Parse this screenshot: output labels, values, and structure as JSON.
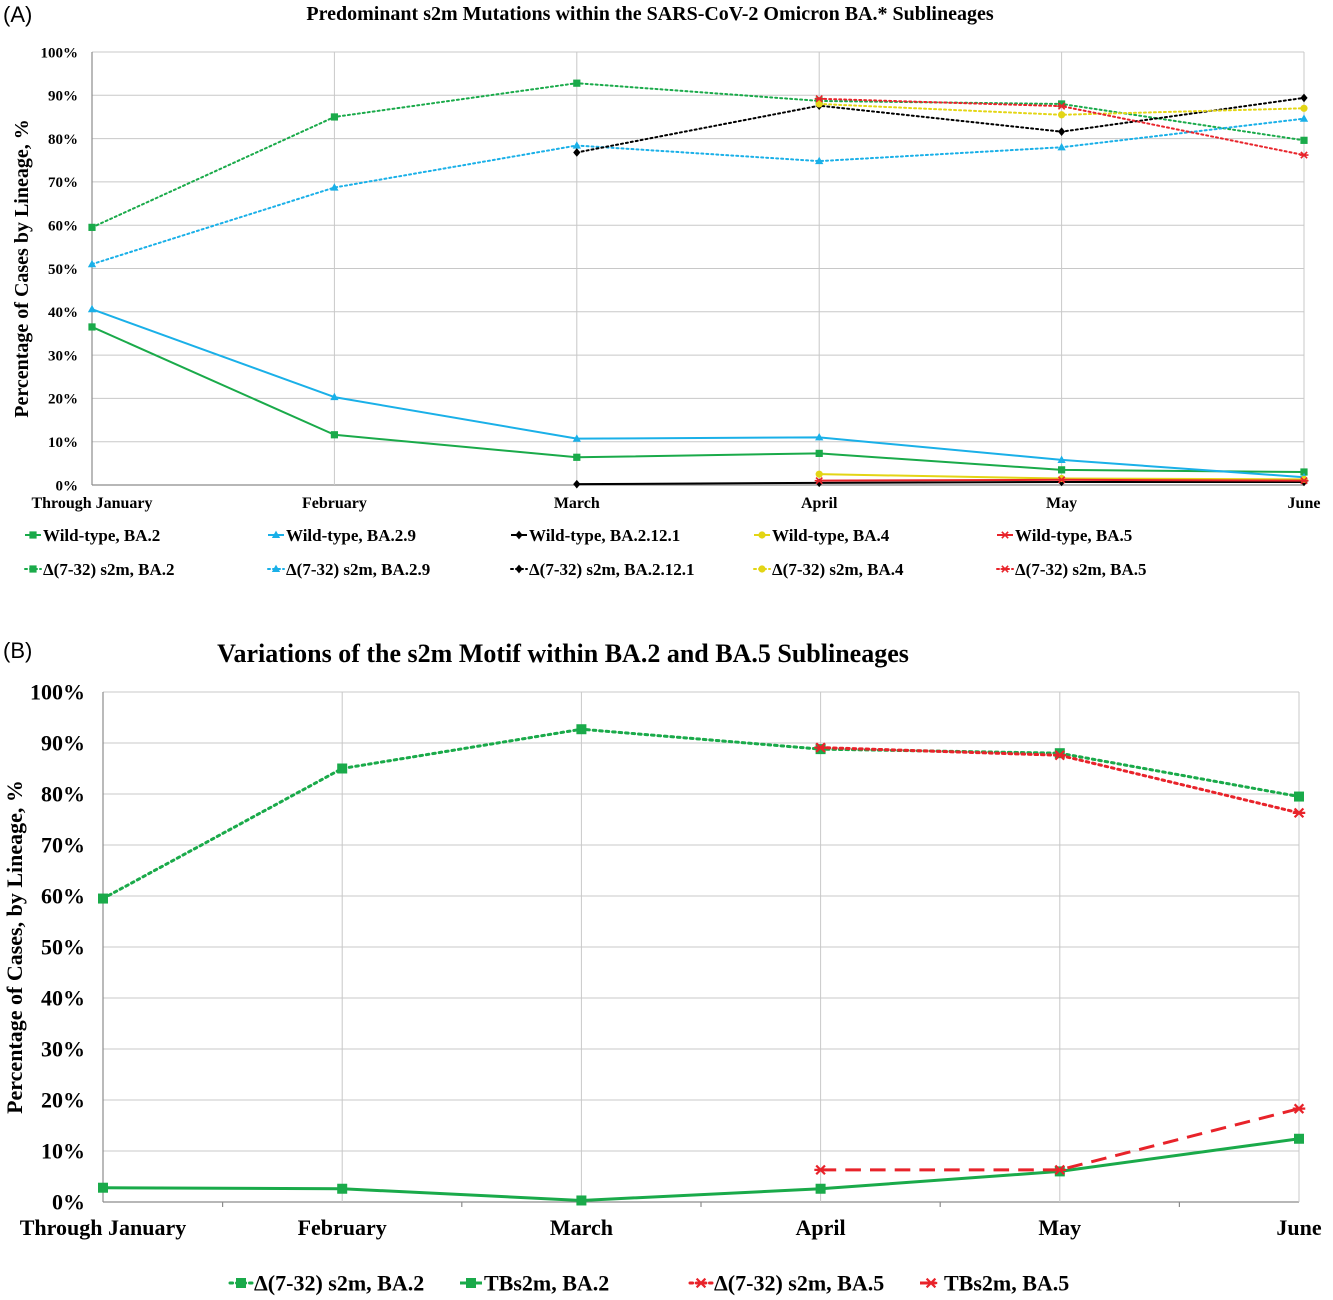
{
  "chart_data": [
    {
      "type": "line",
      "panel_label": "(A)",
      "title": "Predominant s2m Mutations within the SARS-CoV-2 Omicron BA.* Sublineages",
      "xlabel": "",
      "ylabel": "Percentage of Cases by Lineage, %",
      "categories": [
        "Through January",
        "February",
        "March",
        "April",
        "May",
        "June"
      ],
      "ylim": [
        0,
        100
      ],
      "yticks": [
        "0%",
        "10%",
        "20%",
        "30%",
        "40%",
        "50%",
        "60%",
        "70%",
        "80%",
        "90%",
        "100%"
      ],
      "grid": true,
      "legend_position": "bottom",
      "series": [
        {
          "name": "Wild-type, BA.2",
          "color": "#1aaa4a",
          "dash": "solid",
          "marker": "square",
          "values": [
            36.5,
            11.6,
            6.4,
            7.3,
            3.5,
            3.0
          ]
        },
        {
          "name": "Wild-type, BA.2.9",
          "color": "#1ab0e8",
          "dash": "solid",
          "marker": "triangle",
          "values": [
            40.6,
            20.3,
            10.7,
            11.0,
            5.8,
            1.8
          ]
        },
        {
          "name": "Wild-type, BA.2.12.1",
          "color": "#000000",
          "dash": "solid",
          "marker": "diamond",
          "values": [
            null,
            null,
            0.2,
            0.5,
            0.7,
            0.7
          ]
        },
        {
          "name": "Wild-type, BA.4",
          "color": "#e3d515",
          "dash": "solid",
          "marker": "circle",
          "values": [
            null,
            null,
            null,
            2.5,
            1.5,
            1.3
          ]
        },
        {
          "name": "Wild-type, BA.5",
          "color": "#e8232a",
          "dash": "solid",
          "marker": "asterisk",
          "values": [
            null,
            null,
            null,
            1.0,
            1.2,
            1.0
          ]
        },
        {
          "name": "Δ(7-32) s2m, BA.2",
          "color": "#1aaa4a",
          "dash": "dotted",
          "marker": "square",
          "values": [
            59.5,
            85.0,
            92.8,
            88.7,
            88.0,
            79.6
          ]
        },
        {
          "name": "Δ(7-32) s2m, BA.2.9",
          "color": "#1ab0e8",
          "dash": "dotted",
          "marker": "triangle",
          "values": [
            51.0,
            68.7,
            78.4,
            74.8,
            78.0,
            84.6
          ]
        },
        {
          "name": "Δ(7-32) s2m, BA.2.12.1",
          "color": "#000000",
          "dash": "dotted",
          "marker": "diamond",
          "values": [
            null,
            null,
            76.8,
            87.6,
            81.6,
            89.4
          ]
        },
        {
          "name": "Δ(7-32) s2m, BA.4",
          "color": "#e3d515",
          "dash": "dotted",
          "marker": "circle",
          "values": [
            null,
            null,
            null,
            88.0,
            85.5,
            87.0
          ]
        },
        {
          "name": "Δ(7-32) s2m, BA.5",
          "color": "#e8232a",
          "dash": "dotted",
          "marker": "asterisk",
          "values": [
            null,
            null,
            null,
            89.2,
            87.5,
            76.2
          ]
        }
      ]
    },
    {
      "type": "line",
      "panel_label": "(B)",
      "title": "Variations of the s2m Motif within BA.2 and BA.5 Sublineages",
      "xlabel": "",
      "ylabel": "Percentage of Cases, by Lineage, %",
      "categories": [
        "Through January",
        "February",
        "March",
        "April",
        "May",
        "June"
      ],
      "ylim": [
        0,
        100
      ],
      "yticks": [
        "0%",
        "10%",
        "20%",
        "30%",
        "40%",
        "50%",
        "60%",
        "70%",
        "80%",
        "90%",
        "100%"
      ],
      "grid": true,
      "legend_position": "bottom",
      "series": [
        {
          "name": "Δ(7-32) s2m, BA.2",
          "color": "#1aaa4a",
          "dash": "dotted",
          "marker": "square",
          "values": [
            59.5,
            85.0,
            92.7,
            88.8,
            88.0,
            79.5
          ]
        },
        {
          "name": "TBs2m, BA.2",
          "color": "#1aaa4a",
          "dash": "solid",
          "marker": "square",
          "values": [
            2.8,
            2.6,
            0.3,
            2.6,
            6.0,
            12.4
          ]
        },
        {
          "name": "Δ(7-32) s2m, BA.5",
          "color": "#e8232a",
          "dash": "dotted",
          "marker": "asterisk",
          "values": [
            null,
            null,
            null,
            89.1,
            87.6,
            76.3
          ]
        },
        {
          "name": "TBs2m, BA.5",
          "color": "#e8232a",
          "dash": "dashed",
          "marker": "asterisk",
          "values": [
            null,
            null,
            null,
            6.3,
            6.3,
            18.3
          ]
        }
      ]
    }
  ]
}
